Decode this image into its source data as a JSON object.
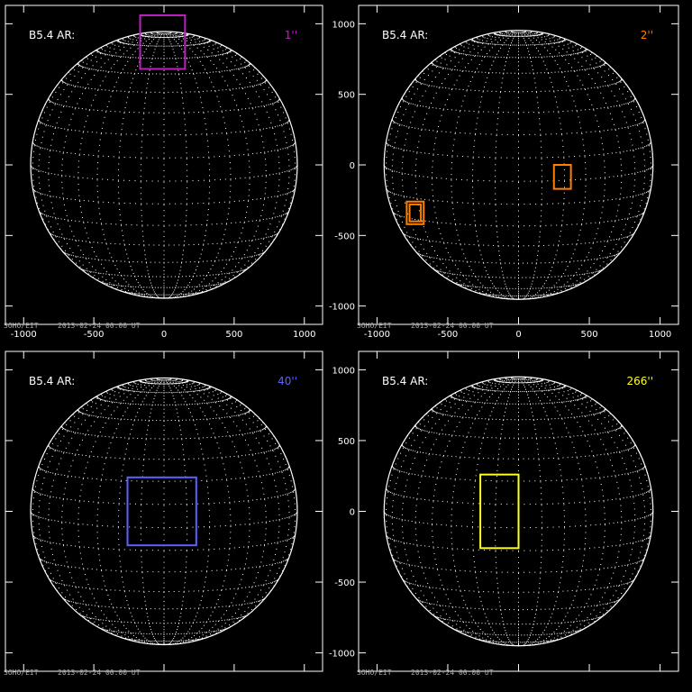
{
  "chart_data": [
    {
      "type": "scatter",
      "title": "B5.4 AR:",
      "size_label": "1''",
      "box_color": "#c020c0",
      "xlim": [
        -1130,
        1130
      ],
      "ylim": [
        -1130,
        1130
      ],
      "x_ticks": [
        -1000,
        -500,
        0,
        500,
        1000
      ],
      "y_ticks": [
        -1000,
        -500,
        0,
        500,
        1000
      ],
      "show_x_tick_labels": true,
      "show_y_tick_labels": false,
      "disk_radius": 950,
      "boxes": [
        {
          "x0": -170,
          "x1": 150,
          "y0": 680,
          "y1": 1060
        }
      ],
      "footer": [
        "SOHO/EIT",
        "2013-02-24 00:00 UT"
      ]
    },
    {
      "type": "scatter",
      "title": "B5.4 AR:",
      "size_label": "2''",
      "box_color": "#ff8000",
      "xlim": [
        -1130,
        1130
      ],
      "ylim": [
        -1130,
        1130
      ],
      "x_ticks": [
        -1000,
        -500,
        0,
        500,
        1000
      ],
      "y_ticks": [
        -1000,
        -500,
        0,
        500,
        1000
      ],
      "show_x_tick_labels": true,
      "show_y_tick_labels": true,
      "disk_radius": 950,
      "boxes": [
        {
          "x0": 250,
          "x1": 370,
          "y0": -170,
          "y1": 0
        },
        {
          "x0": -790,
          "x1": -670,
          "y0": -420,
          "y1": -260
        },
        {
          "x0": -770,
          "x1": -690,
          "y0": -400,
          "y1": -280
        }
      ],
      "footer": [
        "SOHO/EIT",
        "2013-02-24 00:00 UT"
      ]
    },
    {
      "type": "scatter",
      "title": "B5.4 AR:",
      "size_label": "40''",
      "box_color": "#6060ff",
      "xlim": [
        -1130,
        1130
      ],
      "ylim": [
        -1130,
        1130
      ],
      "x_ticks": [
        -1000,
        -500,
        0,
        500,
        1000
      ],
      "y_ticks": [
        -1000,
        -500,
        0,
        500,
        1000
      ],
      "show_x_tick_labels": false,
      "show_y_tick_labels": false,
      "disk_radius": 950,
      "boxes": [
        {
          "x0": -260,
          "x1": 230,
          "y0": -240,
          "y1": 240
        }
      ],
      "footer": [
        "SOHO/EIT",
        "2013-02-24 00:00 UT"
      ]
    },
    {
      "type": "scatter",
      "title": "B5.4 AR:",
      "size_label": "266''",
      "box_color": "#ffff20",
      "xlim": [
        -1130,
        1130
      ],
      "ylim": [
        -1130,
        1130
      ],
      "x_ticks": [
        -1000,
        -500,
        0,
        500,
        1000
      ],
      "y_ticks": [
        -1000,
        -500,
        0,
        500,
        1000
      ],
      "show_x_tick_labels": false,
      "show_y_tick_labels": true,
      "disk_radius": 950,
      "boxes": [
        {
          "x0": -270,
          "x1": 0,
          "y0": -260,
          "y1": 260
        }
      ],
      "footer": [
        "SOHO/EIT",
        "2013-02-24 00:00 UT"
      ]
    }
  ]
}
